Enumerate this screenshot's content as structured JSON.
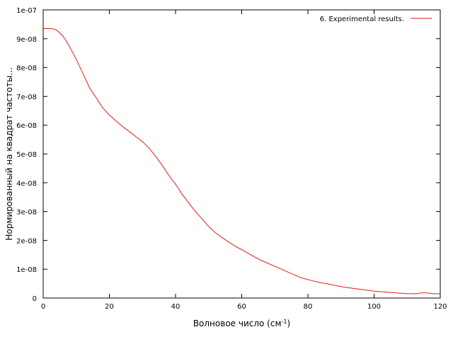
{
  "chart_data": {
    "type": "line",
    "title": "",
    "xlabel": "Волновое число (см",
    "xlabel_superscript": "-1",
    "xlabel_suffix": ")",
    "ylabel": "Нормированный на квадрат частоты...",
    "xlim": [
      0,
      120
    ],
    "ylim": [
      0,
      1e-07
    ],
    "x_ticks": [
      0,
      20,
      40,
      60,
      80,
      100,
      120
    ],
    "x_tick_labels": [
      "0",
      "20",
      "40",
      "60",
      "80",
      "100",
      "120"
    ],
    "y_ticks": [
      0,
      1e-08,
      2e-08,
      3e-08,
      4e-08,
      5e-08,
      6e-08,
      7e-08,
      8e-08,
      9e-08,
      1e-07
    ],
    "y_tick_labels": [
      "0",
      "1e-08",
      "2e-08",
      "3e-08",
      "4e-08",
      "5e-08",
      "6e-08",
      "7e-08",
      "8e-08",
      "9e-08",
      "1e-07"
    ],
    "grid": false,
    "legend_position": "top-right",
    "series": [
      {
        "name": "6. Experimental results.",
        "color": "#e41a1c",
        "x": [
          0,
          1,
          2,
          3,
          4,
          5,
          6,
          7,
          8,
          9,
          10,
          12,
          14,
          16,
          18,
          20,
          22,
          24,
          26,
          28,
          30,
          32,
          34,
          36,
          38,
          40,
          42,
          44,
          46,
          48,
          50,
          52,
          54,
          56,
          58,
          60,
          62,
          64,
          66,
          68,
          70,
          72,
          74,
          76,
          78,
          80,
          82,
          84,
          86,
          88,
          90,
          92,
          94,
          96,
          98,
          100,
          102,
          104,
          106,
          108,
          110,
          112,
          113,
          114,
          116,
          118,
          120
        ],
        "y": [
          9.35e-08,
          9.35e-08,
          9.35e-08,
          9.34e-08,
          9.3e-08,
          9.2e-08,
          9.08e-08,
          8.92e-08,
          8.72e-08,
          8.5e-08,
          8.28e-08,
          7.8e-08,
          7.3e-08,
          6.95e-08,
          6.6e-08,
          6.35e-08,
          6.15e-08,
          5.95e-08,
          5.78e-08,
          5.6e-08,
          5.43e-08,
          5.2e-08,
          4.92e-08,
          4.6e-08,
          4.25e-08,
          3.95e-08,
          3.6e-08,
          3.3e-08,
          3e-08,
          2.75e-08,
          2.48e-08,
          2.27e-08,
          2.1e-08,
          1.95e-08,
          1.8e-08,
          1.68e-08,
          1.55e-08,
          1.42e-08,
          1.3e-08,
          1.2e-08,
          1.1e-08,
          1e-08,
          9e-09,
          8e-09,
          7e-09,
          6.4e-09,
          5.8e-09,
          5.3e-09,
          4.9e-09,
          4.4e-09,
          4e-09,
          3.6e-09,
          3.3e-09,
          3e-09,
          2.7e-09,
          2.4e-09,
          2.2e-09,
          2e-09,
          1.85e-09,
          1.7e-09,
          1.55e-09,
          1.5e-09,
          1.5e-09,
          1.8e-09,
          1.8e-09,
          1.5e-09,
          1.5e-09
        ]
      }
    ]
  }
}
